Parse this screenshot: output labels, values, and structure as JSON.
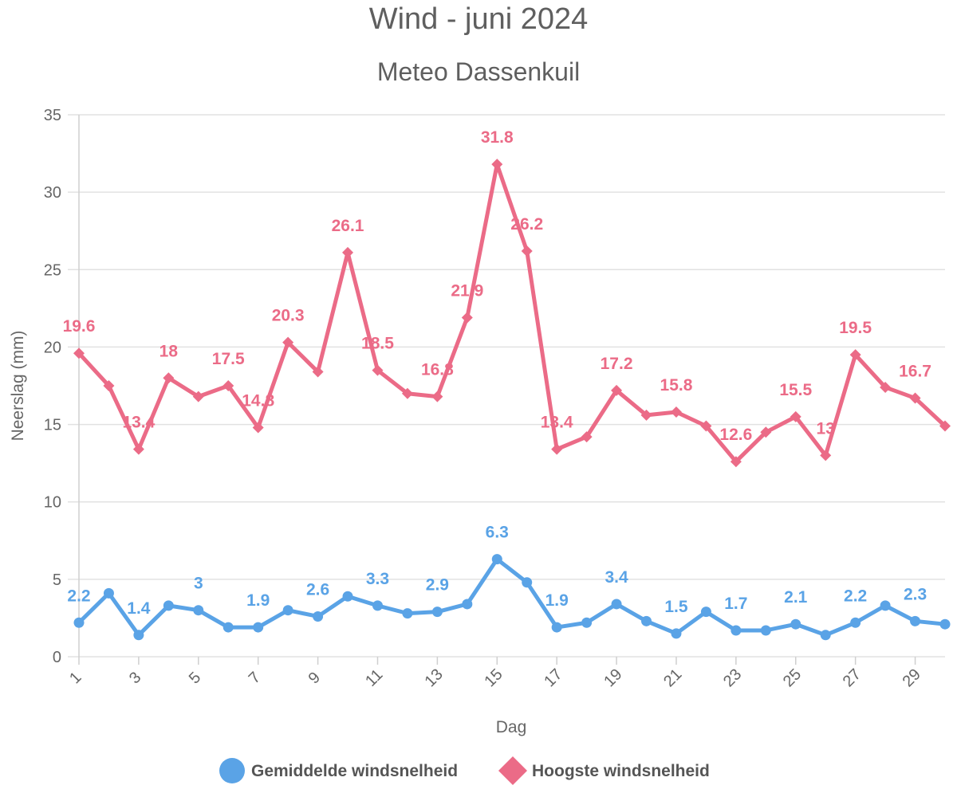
{
  "chart_data": {
    "type": "line",
    "title": "Wind - juni 2024",
    "subtitle": "Meteo Dassenkuil",
    "xlabel": "Dag",
    "ylabel": "Neerslag (mm)",
    "ylim": [
      0,
      35
    ],
    "yticks": [
      "0",
      "5",
      "10",
      "15",
      "20",
      "25",
      "30",
      "35"
    ],
    "xticks": [
      "1",
      "3",
      "5",
      "7",
      "9",
      "11",
      "13",
      "15",
      "17",
      "19",
      "21",
      "23",
      "25",
      "27",
      "29"
    ],
    "x": [
      1,
      2,
      3,
      4,
      5,
      6,
      7,
      8,
      9,
      10,
      11,
      12,
      13,
      14,
      15,
      16,
      17,
      18,
      19,
      20,
      21,
      22,
      23,
      24,
      25,
      26,
      27,
      28,
      29,
      30
    ],
    "grid": true,
    "legend": "bottom-center",
    "series": [
      {
        "name": "Gemiddelde windsnelheid",
        "color": "#5aa3e6",
        "marker": "circle",
        "values": [
          2.2,
          4.1,
          1.4,
          3.3,
          3,
          1.9,
          1.9,
          3,
          2.6,
          3.9,
          3.3,
          2.8,
          2.9,
          3.4,
          6.3,
          4.8,
          1.9,
          2.2,
          3.4,
          2.3,
          1.5,
          2.9,
          1.7,
          1.7,
          2.1,
          1.4,
          2.2,
          3.3,
          2.3,
          2.1
        ],
        "labeled_days": [
          1,
          3,
          5,
          7,
          9,
          11,
          13,
          15,
          17,
          19,
          21,
          23,
          25,
          27,
          29
        ]
      },
      {
        "name": "Hoogste windsnelheid",
        "color": "#eb6b87",
        "marker": "diamond",
        "values": [
          19.6,
          17.5,
          13.4,
          18,
          16.8,
          17.5,
          14.8,
          20.3,
          18.4,
          26.1,
          18.5,
          17,
          16.8,
          21.9,
          31.8,
          26.2,
          13.4,
          14.2,
          17.2,
          15.6,
          15.8,
          14.9,
          12.6,
          14.5,
          15.5,
          13,
          19.5,
          17.4,
          16.7,
          14.9
        ],
        "labeled_days": [
          1,
          3,
          4,
          6,
          7,
          8,
          10,
          11,
          13,
          14,
          15,
          16,
          17,
          19,
          21,
          23,
          25,
          26,
          27,
          29
        ]
      }
    ]
  }
}
